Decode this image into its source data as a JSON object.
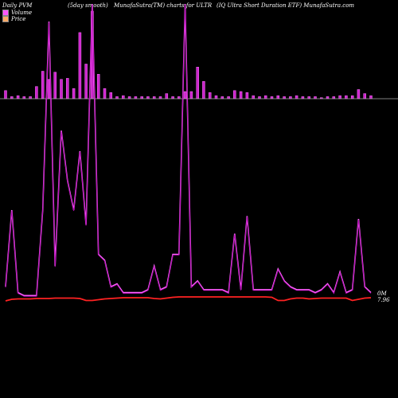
{
  "header": {
    "left": "Daily PVM",
    "smooth": "(5day smooth)",
    "center": "MunafaSutra(TM) charts for ULTR",
    "right": "(IQ Ultra Short Duration ETF) MunafaSutra.com"
  },
  "legend": [
    {
      "label": "Volume",
      "color": "#ff55ff"
    },
    {
      "label": "Price",
      "color": "#ffaa66"
    }
  ],
  "colors": {
    "background": "#000000",
    "volume_bar": "#cc22cc",
    "volume_line": "#ff66ff",
    "price_line": "#ff2222",
    "baseline": "#aaaaaa"
  },
  "chart_data": {
    "type": "bar",
    "title": "",
    "volume_bars": [
      8,
      2,
      3,
      2,
      2,
      12,
      27,
      19,
      26,
      19,
      20,
      10,
      65,
      34,
      86,
      24,
      10,
      6,
      2,
      3,
      2,
      2,
      2,
      2,
      2,
      2,
      5,
      2,
      2,
      7,
      7,
      31,
      17,
      6,
      3,
      2,
      2,
      8,
      7,
      6,
      3,
      2,
      3,
      2,
      3,
      2,
      2,
      3,
      2,
      2,
      2,
      1,
      2,
      2,
      3,
      3,
      3,
      9,
      5,
      3
    ],
    "volume_smoothed": [
      4,
      30,
      2,
      1,
      1,
      1,
      30,
      94,
      11,
      57,
      40,
      30,
      50,
      25,
      100,
      15,
      13,
      4,
      5,
      2,
      2,
      2,
      2,
      3,
      11,
      3,
      4,
      15,
      15,
      100,
      4,
      6,
      3,
      3,
      3,
      3,
      2,
      22,
      3,
      28,
      3,
      3,
      3,
      3,
      10,
      6,
      4,
      3,
      3,
      3,
      2,
      3,
      5,
      2,
      9,
      2,
      3,
      27,
      4,
      2
    ],
    "price": [
      0.5,
      0.9,
      1.0,
      1.0,
      1.0,
      1.1,
      1.1,
      1.1,
      1.2,
      1.2,
      1.2,
      1.2,
      1.1,
      0.6,
      0.6,
      0.8,
      1.0,
      1.1,
      1.2,
      1.3,
      1.3,
      1.3,
      1.3,
      1.3,
      1.1,
      1.0,
      1.2,
      1.4,
      1.5,
      1.5,
      1.5,
      1.5,
      1.5,
      1.5,
      1.5,
      1.5,
      1.5,
      1.5,
      1.5,
      1.5,
      1.5,
      1.5,
      1.5,
      1.4,
      0.6,
      0.6,
      1.0,
      1.2,
      1.2,
      1.0,
      1.1,
      1.2,
      1.2,
      1.2,
      1.2,
      1.2,
      0.6,
      0.9,
      1.2,
      1.3
    ],
    "labels": {
      "volume_end": "0M",
      "price_end": "7.96"
    }
  }
}
